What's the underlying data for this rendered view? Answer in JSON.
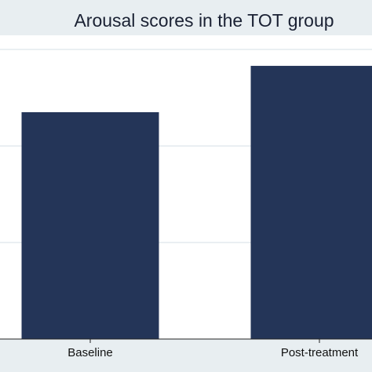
{
  "chart_data": {
    "type": "bar",
    "title": "Arousal scores in the TOT group",
    "categories": [
      "Baseline",
      "Post-treatment"
    ],
    "values": [
      2.35,
      2.83
    ],
    "xlabel": "",
    "ylabel": "",
    "ylim": [
      0,
      3
    ],
    "grid": true,
    "colors": {
      "bar": "#243558",
      "plot_background": "#ffffff",
      "outer_background": "#e8eef1",
      "gridline": "#e3eaee"
    }
  }
}
